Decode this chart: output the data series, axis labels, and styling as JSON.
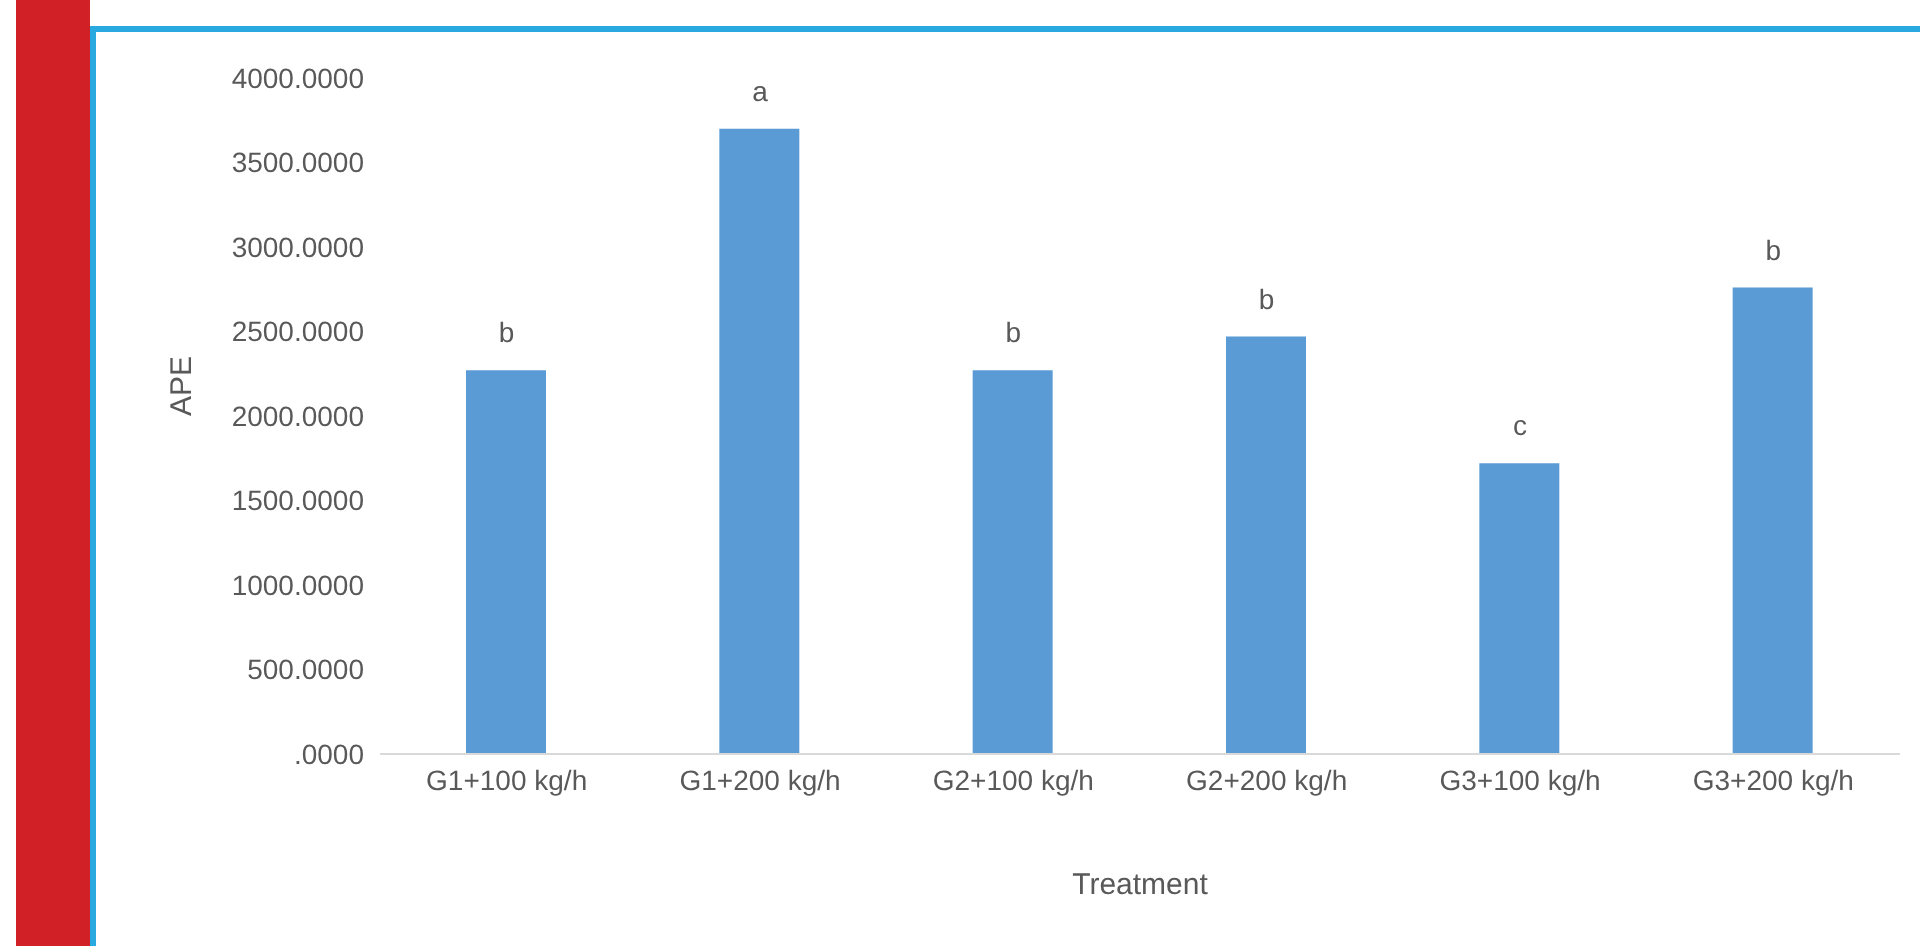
{
  "chart_data": {
    "type": "bar",
    "xlabel": "Treatment",
    "ylabel": "APE",
    "categories": [
      "G1+100 kg/h",
      "G1+200 kg/h",
      "G2+100 kg/h",
      "G2+200 kg/h",
      "G3+100 kg/h",
      "G3+200 kg/h"
    ],
    "values": [
      2270,
      3700,
      2270,
      2470,
      1720,
      2760
    ],
    "color": "#5b9bd5",
    "ylim": [
      0,
      4000
    ],
    "yticks": [
      {
        "value": 0,
        "label": ".0000"
      },
      {
        "value": 500,
        "label": "500.0000"
      },
      {
        "value": 1000,
        "label": "1000.0000"
      },
      {
        "value": 1500,
        "label": "1500.0000"
      },
      {
        "value": 2000,
        "label": "2000.0000"
      },
      {
        "value": 2500,
        "label": "2500.0000"
      },
      {
        "value": 3000,
        "label": "3000.0000"
      },
      {
        "value": 3500,
        "label": "3500.0000"
      },
      {
        "value": 4000,
        "label": "4000.0000"
      }
    ],
    "annotations": [
      {
        "text": "b",
        "x": "G1+100 kg/h",
        "y": 2270
      },
      {
        "text": "a",
        "x": "G1+200 kg/h",
        "y": 3700
      },
      {
        "text": "b",
        "x": "G2+100 kg/h",
        "y": 2270
      },
      {
        "text": "b",
        "x": "G2+200 kg/h",
        "y": 2470
      },
      {
        "text": "c",
        "x": "G3+100 kg/h",
        "y": 1720
      },
      {
        "text": "b",
        "x": "G3+200 kg/h",
        "y": 2760
      }
    ],
    "grid": false,
    "legend": false
  }
}
